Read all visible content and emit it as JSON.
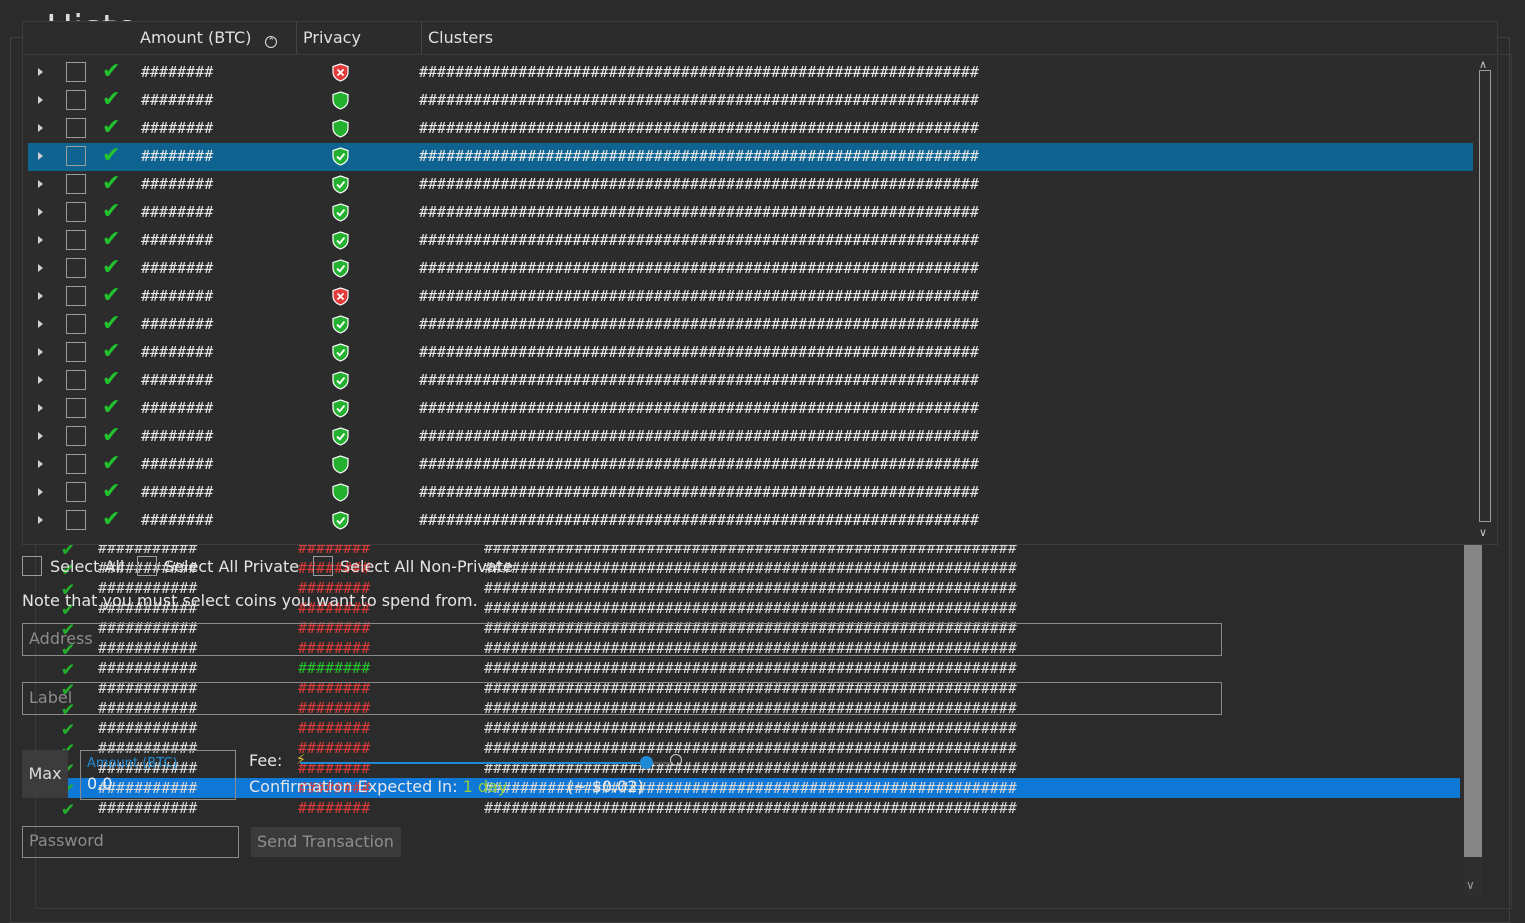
{
  "title": "Histo",
  "columns": {
    "amount": "Amount (BTC)",
    "privacy": "Privacy",
    "clusters": "Clusters"
  },
  "coins": [
    {
      "amount": "########",
      "privacy": "red",
      "clusters": "##############################################################",
      "selected": false
    },
    {
      "amount": "########",
      "privacy": "green",
      "clusters": "##############################################################",
      "selected": false
    },
    {
      "amount": "########",
      "privacy": "green",
      "clusters": "##############################################################",
      "selected": false
    },
    {
      "amount": "########",
      "privacy": "green-check",
      "clusters": "##############################################################",
      "selected": true
    },
    {
      "amount": "########",
      "privacy": "green-check",
      "clusters": "##############################################################",
      "selected": false
    },
    {
      "amount": "########",
      "privacy": "green-check",
      "clusters": "##############################################################",
      "selected": false
    },
    {
      "amount": "########",
      "privacy": "green-check",
      "clusters": "##############################################################",
      "selected": false
    },
    {
      "amount": "########",
      "privacy": "green-check",
      "clusters": "##############################################################",
      "selected": false
    },
    {
      "amount": "########",
      "privacy": "red",
      "clusters": "##############################################################",
      "selected": false
    },
    {
      "amount": "########",
      "privacy": "green-check",
      "clusters": "##############################################################",
      "selected": false
    },
    {
      "amount": "########",
      "privacy": "green-check",
      "clusters": "##############################################################",
      "selected": false
    },
    {
      "amount": "########",
      "privacy": "green-check",
      "clusters": "##############################################################",
      "selected": false
    },
    {
      "amount": "########",
      "privacy": "green-check",
      "clusters": "##############################################################",
      "selected": false
    },
    {
      "amount": "########",
      "privacy": "green-check",
      "clusters": "##############################################################",
      "selected": false
    },
    {
      "amount": "########",
      "privacy": "green",
      "clusters": "##############################################################",
      "selected": false
    },
    {
      "amount": "########",
      "privacy": "green",
      "clusters": "##############################################################",
      "selected": false
    },
    {
      "amount": "########",
      "privacy": "green-check",
      "clusters": "##############################################################",
      "selected": false
    }
  ],
  "history_rows": [
    {
      "amount": "###########",
      "value": "########",
      "value_color": "red",
      "clusters": "###########################################################",
      "selected": false
    },
    {
      "amount": "###########",
      "value": "########",
      "value_color": "red",
      "clusters": "###########################################################",
      "selected": false
    },
    {
      "amount": "###########",
      "value": "########",
      "value_color": "red",
      "clusters": "###########################################################",
      "selected": false
    },
    {
      "amount": "###########",
      "value": "########",
      "value_color": "red",
      "clusters": "###########################################################",
      "selected": false
    },
    {
      "amount": "###########",
      "value": "########",
      "value_color": "red",
      "clusters": "###########################################################",
      "selected": false
    },
    {
      "amount": "###########",
      "value": "########",
      "value_color": "red",
      "clusters": "###########################################################",
      "selected": false
    },
    {
      "amount": "###########",
      "value": "########",
      "value_color": "green",
      "clusters": "###########################################################",
      "selected": false
    },
    {
      "amount": "###########",
      "value": "########",
      "value_color": "red",
      "clusters": "###########################################################",
      "selected": false
    },
    {
      "amount": "###########",
      "value": "########",
      "value_color": "red",
      "clusters": "###########################################################",
      "selected": false
    },
    {
      "amount": "###########",
      "value": "########",
      "value_color": "red",
      "clusters": "###########################################################",
      "selected": false
    },
    {
      "amount": "###########",
      "value": "########",
      "value_color": "red",
      "clusters": "###########################################################",
      "selected": false
    },
    {
      "amount": "###########",
      "value": "########",
      "value_color": "red",
      "clusters": "###########################################################",
      "selected": false
    },
    {
      "amount": "###########",
      "value": "########",
      "value_color": "red",
      "clusters": "###########################################################",
      "selected": true
    },
    {
      "amount": "###########",
      "value": "########",
      "value_color": "red",
      "clusters": "###########################################################",
      "selected": false
    }
  ],
  "controls": {
    "select_all": "Select All",
    "select_all_private": "Select All Private",
    "select_all_non_private": "Select All Non-Private",
    "note": "Note that you must select coins you want to spend from.",
    "address_placeholder": "Address",
    "label_placeholder": "Label",
    "max_button": "Max",
    "amount_caption": "Amount (BTC)",
    "amount_value": "0.0",
    "fee_label": "Fee:",
    "confirmation_label": "Confirmation Expected In:",
    "confirmation_value": "1 day",
    "fee_usd": "(~ $0.02)",
    "password_placeholder": "Password",
    "send_button": "Send Transaction"
  },
  "fee_slider_level": 0.93,
  "colors": {
    "accent": "#1f8ad6",
    "ok": "#22c32c",
    "bad": "#e03a3a",
    "selected_row": "#0f6391",
    "green_value": "#8fcc3f"
  }
}
